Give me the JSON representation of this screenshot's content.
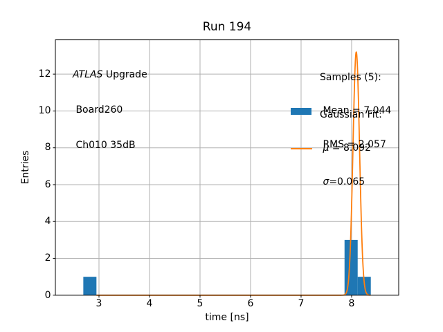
{
  "chart_data": {
    "type": "bar",
    "title": "Run 194",
    "xlabel": "time [ns]",
    "ylabel": "Entries",
    "xlim": [
      2.137,
      8.932
    ],
    "ylim": [
      0,
      13.86
    ],
    "xticks": [
      3,
      4,
      5,
      6,
      7,
      8
    ],
    "yticks": [
      0,
      2,
      4,
      6,
      8,
      10,
      12
    ],
    "grid": true,
    "legend_position": "upper right",
    "series": [
      {
        "name": "Samples (5)",
        "kind": "histogram",
        "n_samples": 5,
        "mean": 7.044,
        "rms": 2.057,
        "bins": [
          {
            "x0": 2.69,
            "x1": 2.95,
            "count": 1
          },
          {
            "x0": 7.86,
            "x1": 8.12,
            "count": 3
          },
          {
            "x0": 8.12,
            "x1": 8.38,
            "count": 1
          }
        ]
      },
      {
        "name": "Gaussian Fit",
        "kind": "gaussian-curve",
        "mu": 8.092,
        "sigma": 0.065,
        "peak": 13.2,
        "x_start": 2.95,
        "x_end": 8.38
      }
    ],
    "colors": {
      "bar": "#1f77b4",
      "fit_line": "#ff7f0e",
      "grid": "#b0b0b0",
      "axis": "#000000"
    }
  },
  "annotation": {
    "line1_italic": "ATLAS",
    "line1_rest": " Upgrade",
    "line2": " Board260",
    "line3": " Ch010 35dB"
  },
  "legend": {
    "samples": {
      "header": "Samples (5):",
      "mean_line": " Mean = 7.044",
      "rms_line": " RMS = 2.057"
    },
    "fit": {
      "header": "Gaussian Fit:",
      "mu_symbol": " μ",
      "mu_rest": " = 8.092",
      "sigma_symbol": " σ",
      "sigma_rest": "=0.065"
    }
  }
}
